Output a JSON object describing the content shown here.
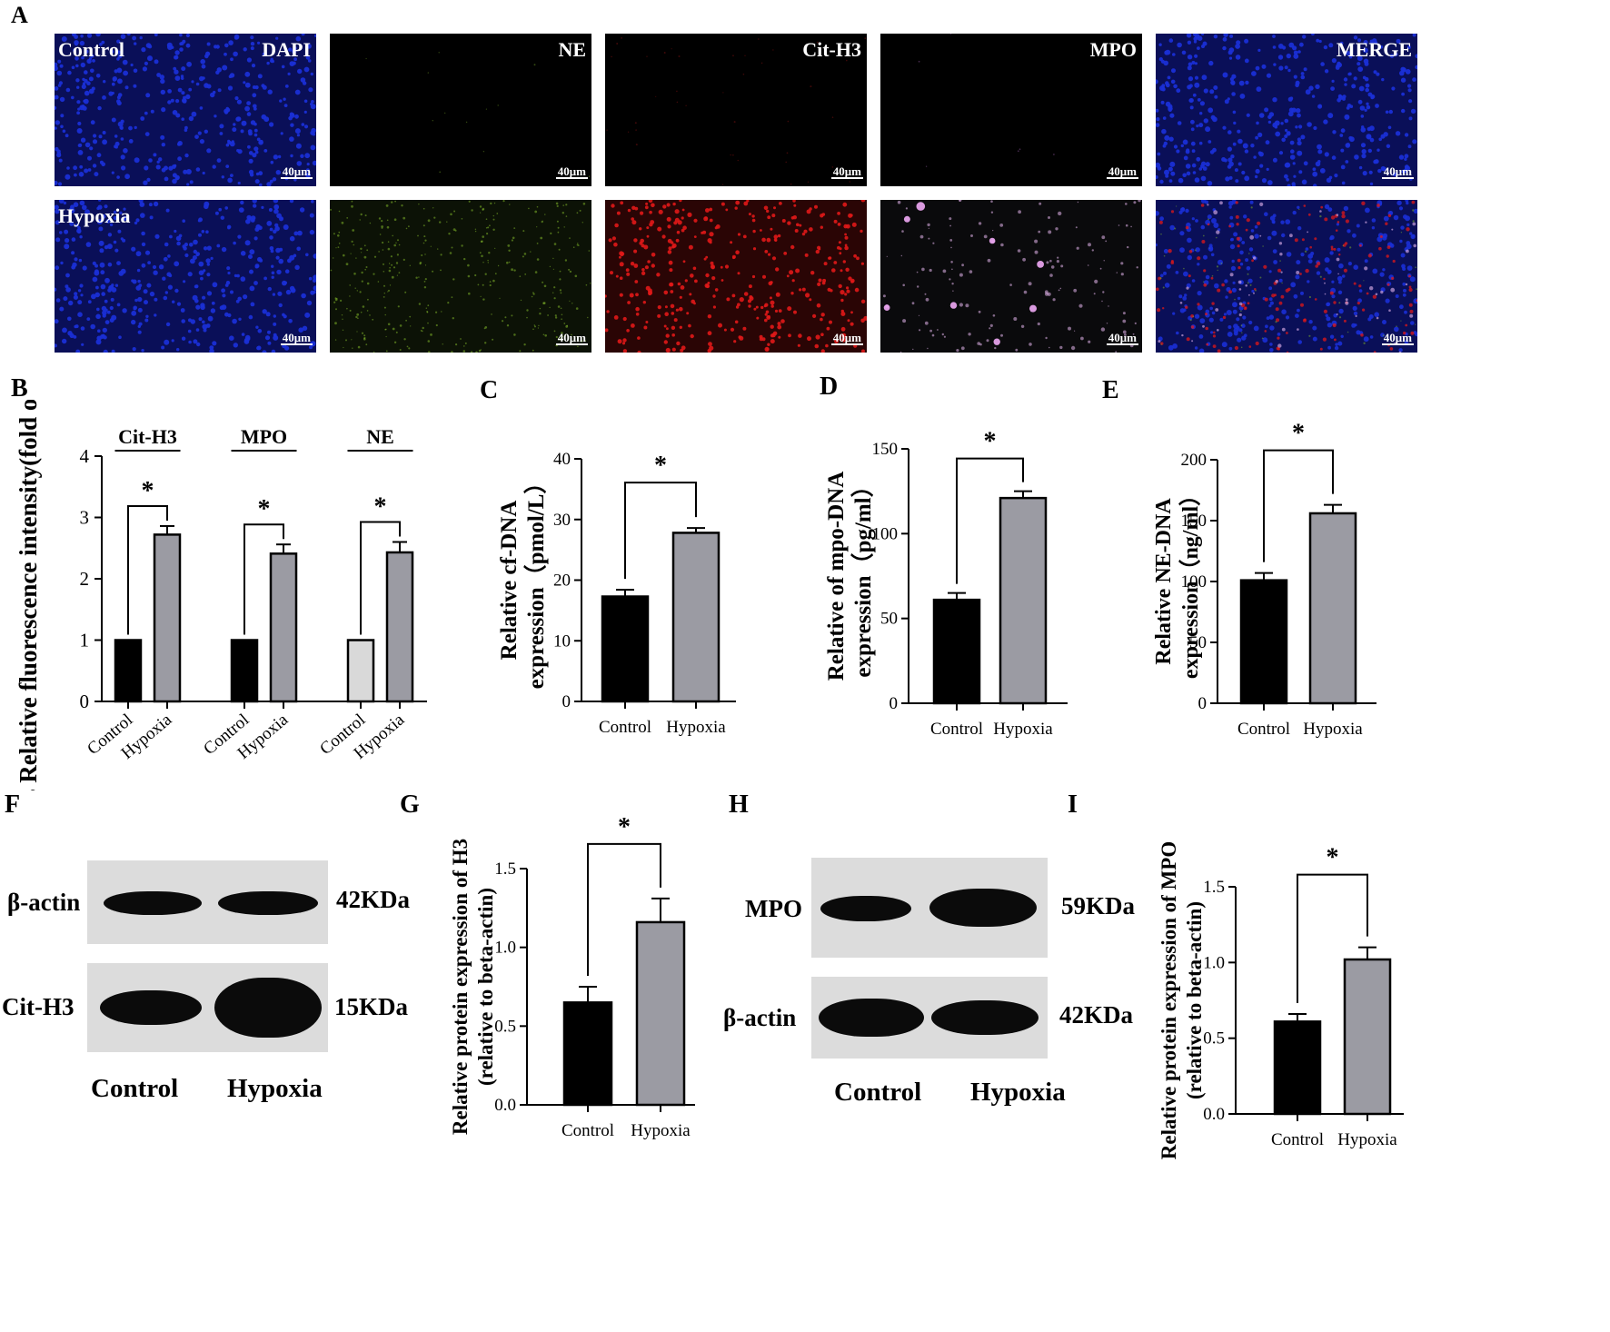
{
  "panel_labels": {
    "A": "A",
    "B": "B",
    "C": "C",
    "D": "D",
    "E": "E",
    "F": "F",
    "G": "G",
    "H": "H",
    "I": "I"
  },
  "microscopy": {
    "row_labels": [
      "Control",
      "Hypoxia"
    ],
    "channels": [
      "DAPI",
      "NE",
      "Cit-H3",
      "MPO",
      "MERGE"
    ],
    "scale_bar": "40μm",
    "colors": {
      "dapi": "#1a2fd6",
      "ne": "#7fb52a",
      "cit_h3": "#e01818",
      "mpo": "#e8b8f0"
    }
  },
  "western": {
    "F": {
      "rows": [
        {
          "protein": "β-actin",
          "size": "42KDa"
        },
        {
          "protein": "Cit-H3",
          "size": "15KDa"
        }
      ],
      "lanes": [
        "Control",
        "Hypoxia"
      ]
    },
    "H": {
      "rows": [
        {
          "protein": "MPO",
          "size": "59KDa"
        },
        {
          "protein": "β-actin",
          "size": "42KDa"
        }
      ],
      "lanes": [
        "Control",
        "Hypoxia"
      ]
    }
  },
  "chart_data": [
    {
      "panel": "B",
      "type": "bar",
      "ylabel": "NETs Relative fluorescence intensity(fold of vector)",
      "ylim": [
        0,
        4
      ],
      "yticks": [
        0,
        1,
        2,
        3,
        4
      ],
      "groups": [
        {
          "name": "Cit-H3",
          "categories": [
            "Control",
            "Hypoxia"
          ],
          "values": [
            1.0,
            2.72
          ],
          "errors": [
            0,
            0.14
          ],
          "significance": "*"
        },
        {
          "name": "MPO",
          "categories": [
            "Control",
            "Hypoxia"
          ],
          "values": [
            1.0,
            2.41
          ],
          "errors": [
            0,
            0.15
          ],
          "significance": "*"
        },
        {
          "name": "NE",
          "categories": [
            "Control",
            "Hypoxia"
          ],
          "values": [
            1.0,
            2.43
          ],
          "errors": [
            0,
            0.17
          ],
          "significance": "*"
        }
      ],
      "colors": [
        "#000000",
        "#9b9ba3"
      ],
      "ne_control_color": "#d9d9d9"
    },
    {
      "panel": "C",
      "type": "bar",
      "categories": [
        "Control",
        "Hypoxia"
      ],
      "values": [
        17.3,
        27.8
      ],
      "errors": [
        1.1,
        0.8
      ],
      "ylabel_lines": [
        "Relative cf-DNA",
        "expression（pmol/L）"
      ],
      "ylim": [
        0,
        40
      ],
      "yticks": [
        0,
        10,
        20,
        30,
        40
      ],
      "significance": "*"
    },
    {
      "panel": "D",
      "type": "bar",
      "categories": [
        "Control",
        "Hypoxia"
      ],
      "values": [
        61,
        121
      ],
      "errors": [
        4,
        4
      ],
      "ylabel_lines": [
        "Relative of mpo-DNA",
        "expression（pg/ml）"
      ],
      "ylim": [
        0,
        150
      ],
      "yticks": [
        0,
        50,
        100,
        150
      ],
      "significance": "*"
    },
    {
      "panel": "E",
      "type": "bar",
      "categories": [
        "Control",
        "Hypoxia"
      ],
      "values": [
        101,
        156
      ],
      "errors": [
        6,
        7
      ],
      "ylabel_lines": [
        "Relative NE-DNA",
        "expression（ng/ml）"
      ],
      "ylim": [
        0,
        200
      ],
      "yticks": [
        0,
        50,
        100,
        150,
        200
      ],
      "significance": "*"
    },
    {
      "panel": "G",
      "type": "bar",
      "categories": [
        "Control",
        "Hypoxia"
      ],
      "values": [
        0.65,
        1.16
      ],
      "errors": [
        0.1,
        0.15
      ],
      "ylabel_lines": [
        "Relative protein expression of H3",
        "(relative to beta-actin)"
      ],
      "ylim": [
        0,
        1.5
      ],
      "yticks": [
        "0.0",
        "0.5",
        "1.0",
        "1.5"
      ],
      "significance": "*"
    },
    {
      "panel": "I",
      "type": "bar",
      "categories": [
        "Control",
        "Hypoxia"
      ],
      "values": [
        0.61,
        1.02
      ],
      "errors": [
        0.05,
        0.08
      ],
      "ylabel_lines": [
        "Relative protein expression of MPO",
        "(relative to beta-actin)"
      ],
      "ylim": [
        0,
        1.5
      ],
      "yticks": [
        "0.0",
        "0.5",
        "1.0",
        "1.5"
      ],
      "significance": "*"
    }
  ]
}
